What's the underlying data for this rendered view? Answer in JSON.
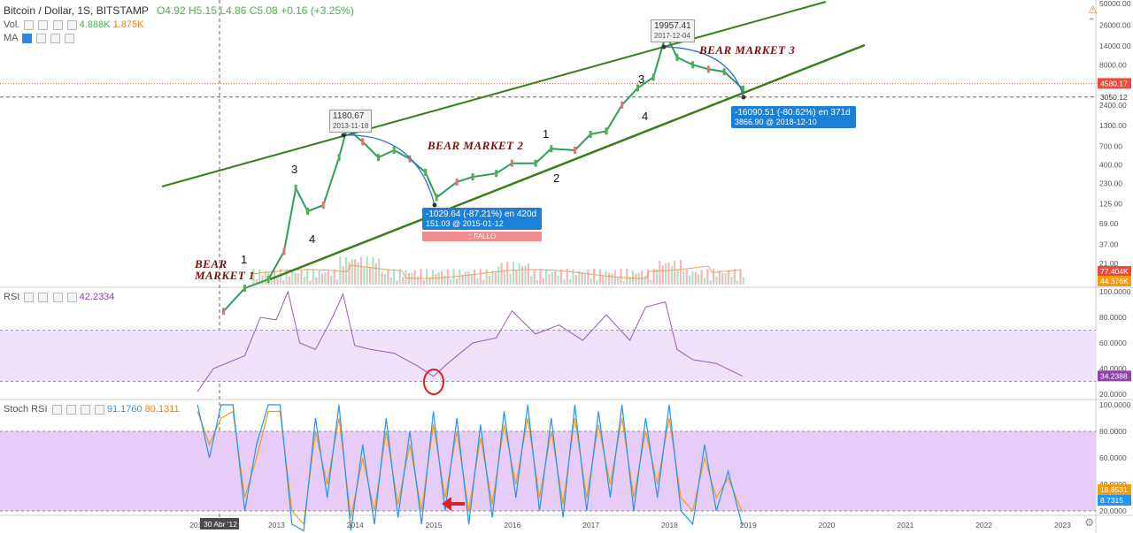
{
  "header": {
    "title": "Bitcoin / Dollar, 1S, BITSTAMP",
    "ohlc": "O4.92  H5.15  L4.86  C5.08  +0.16 (+3.25%)",
    "vol_label": "Vol.",
    "vol_green": "4.888K",
    "vol_orange": "1.875K",
    "ma_label": "MA",
    "rsi_label": "RSI",
    "rsi_value": "42.2334",
    "stoch_label": "Stoch RSI",
    "stoch_k": "91.1760",
    "stoch_d": "80.1311"
  },
  "icons": {
    "alert": "warning-icon",
    "settings": "gear-icon",
    "up": "chevron-up-icon"
  },
  "annotations": {
    "peak1_price": "1180.67",
    "peak1_date": "2013-11-18",
    "peak2_price": "19957.41",
    "peak2_date": "2017-12-04",
    "drop1_main": "-1029.64 (-87.21%) en 420d",
    "drop1_sub": "151.03  @ 2015-01-12",
    "drop2_main": "-16090.51 (-80.62%) en 371d",
    "drop2_sub": "3866.90  @ 2018-12-10",
    "fallo": "FALLO",
    "bear1_line1": "BEAR",
    "bear1_line2": "MARKET 1",
    "bear2": "BEAR MARKET 2",
    "bear3": "BEAR MARKET 3",
    "waves": [
      "1",
      "3",
      "4",
      "1",
      "2",
      "3",
      "4"
    ],
    "crosshair_date": "30 Abr '12"
  },
  "chart_data": {
    "type": "line",
    "price_axis": {
      "scale": "log",
      "ticks": [
        21.0,
        37.0,
        69.0,
        125.0,
        230.0,
        400.0,
        700.0,
        1300.0,
        2400.0,
        4400.0,
        8000.0,
        14000.0,
        26000.0,
        50000.0
      ],
      "labels": [
        "21.00",
        "37.00",
        "69.00",
        "125.00",
        "230.00",
        "400.00",
        "700.00",
        "1300.00",
        "2400.00",
        "4400.00",
        "8000.00",
        "14000.00",
        "26000.00",
        "50000.00"
      ],
      "current_price": "4580.17",
      "crosshair_price": "3050.12",
      "vol_tags": [
        "77.404K",
        "44.376K"
      ]
    },
    "time_axis": {
      "labels": [
        "2012",
        "2013",
        "2014",
        "2015",
        "2016",
        "2017",
        "2018",
        "2019",
        "2020",
        "2021",
        "2022",
        "2023"
      ]
    },
    "series": [
      {
        "name": "BTC/USD",
        "x": [
          2012.33,
          2012.6,
          2012.9,
          2013.1,
          2013.25,
          2013.4,
          2013.6,
          2013.8,
          2013.9,
          2014.1,
          2014.3,
          2014.5,
          2014.7,
          2014.9,
          2015.04,
          2015.3,
          2015.5,
          2015.8,
          2016.0,
          2016.3,
          2016.5,
          2016.8,
          2017.0,
          2017.2,
          2017.4,
          2017.6,
          2017.8,
          2017.96,
          2018.1,
          2018.3,
          2018.5,
          2018.7,
          2018.94
        ],
        "y": [
          5,
          10,
          13,
          30,
          200,
          100,
          120,
          500,
          1180.67,
          800,
          500,
          620,
          480,
          320,
          151.03,
          240,
          280,
          310,
          420,
          420,
          650,
          620,
          1000,
          1100,
          2400,
          4000,
          5500,
          19957.41,
          10000,
          8000,
          7000,
          6500,
          3866.9
        ]
      }
    ],
    "rsi": {
      "axis_ticks": [
        "100.0000",
        "80.0000",
        "60.0000",
        "40.0000",
        "20.0000"
      ],
      "band": [
        30,
        70
      ],
      "current": "34.2388",
      "x": [
        2012.0,
        2012.2,
        2012.4,
        2012.6,
        2012.8,
        2013.0,
        2013.15,
        2013.3,
        2013.5,
        2013.7,
        2013.85,
        2014.0,
        2014.2,
        2014.5,
        2014.8,
        2015.0,
        2015.2,
        2015.5,
        2015.8,
        2016.0,
        2016.3,
        2016.6,
        2016.9,
        2017.2,
        2017.5,
        2017.7,
        2017.95,
        2018.1,
        2018.3,
        2018.6,
        2018.93
      ],
      "y": [
        22,
        40,
        45,
        50,
        80,
        78,
        100,
        60,
        55,
        78,
        98,
        58,
        55,
        52,
        42,
        34,
        45,
        60,
        64,
        85,
        67,
        74,
        62,
        82,
        62,
        88,
        92,
        55,
        47,
        44,
        34.24
      ]
    },
    "stoch_rsi": {
      "axis_ticks": [
        "100.0000",
        "80.0000",
        "60.0000",
        "40.0000",
        "20.0000"
      ],
      "band": [
        20,
        80
      ],
      "k_current": "8.7315",
      "d_current": "18.8531",
      "x": [
        2012.0,
        2012.15,
        2012.3,
        2012.45,
        2012.6,
        2012.75,
        2012.9,
        2013.05,
        2013.2,
        2013.35,
        2013.5,
        2013.65,
        2013.8,
        2013.95,
        2014.1,
        2014.25,
        2014.4,
        2014.55,
        2014.7,
        2014.85,
        2015.0,
        2015.15,
        2015.3,
        2015.45,
        2015.6,
        2015.75,
        2015.9,
        2016.05,
        2016.2,
        2016.35,
        2016.5,
        2016.65,
        2016.8,
        2016.95,
        2017.1,
        2017.25,
        2017.4,
        2017.55,
        2017.7,
        2017.85,
        2018.0,
        2018.15,
        2018.3,
        2018.45,
        2018.6,
        2018.75,
        2018.93
      ],
      "k": [
        100,
        60,
        100,
        100,
        20,
        70,
        100,
        100,
        10,
        5,
        90,
        30,
        100,
        5,
        70,
        10,
        90,
        15,
        80,
        10,
        95,
        20,
        90,
        10,
        85,
        15,
        95,
        30,
        100,
        20,
        90,
        15,
        100,
        20,
        95,
        30,
        100,
        20,
        90,
        30,
        100,
        20,
        10,
        70,
        20,
        50,
        8.73
      ],
      "d": [
        95,
        70,
        90,
        95,
        30,
        60,
        95,
        95,
        20,
        10,
        80,
        40,
        90,
        15,
        60,
        20,
        80,
        25,
        70,
        20,
        85,
        30,
        80,
        20,
        75,
        25,
        85,
        40,
        90,
        30,
        80,
        25,
        90,
        30,
        85,
        40,
        90,
        30,
        80,
        40,
        90,
        30,
        20,
        60,
        30,
        45,
        18.85
      ]
    }
  }
}
